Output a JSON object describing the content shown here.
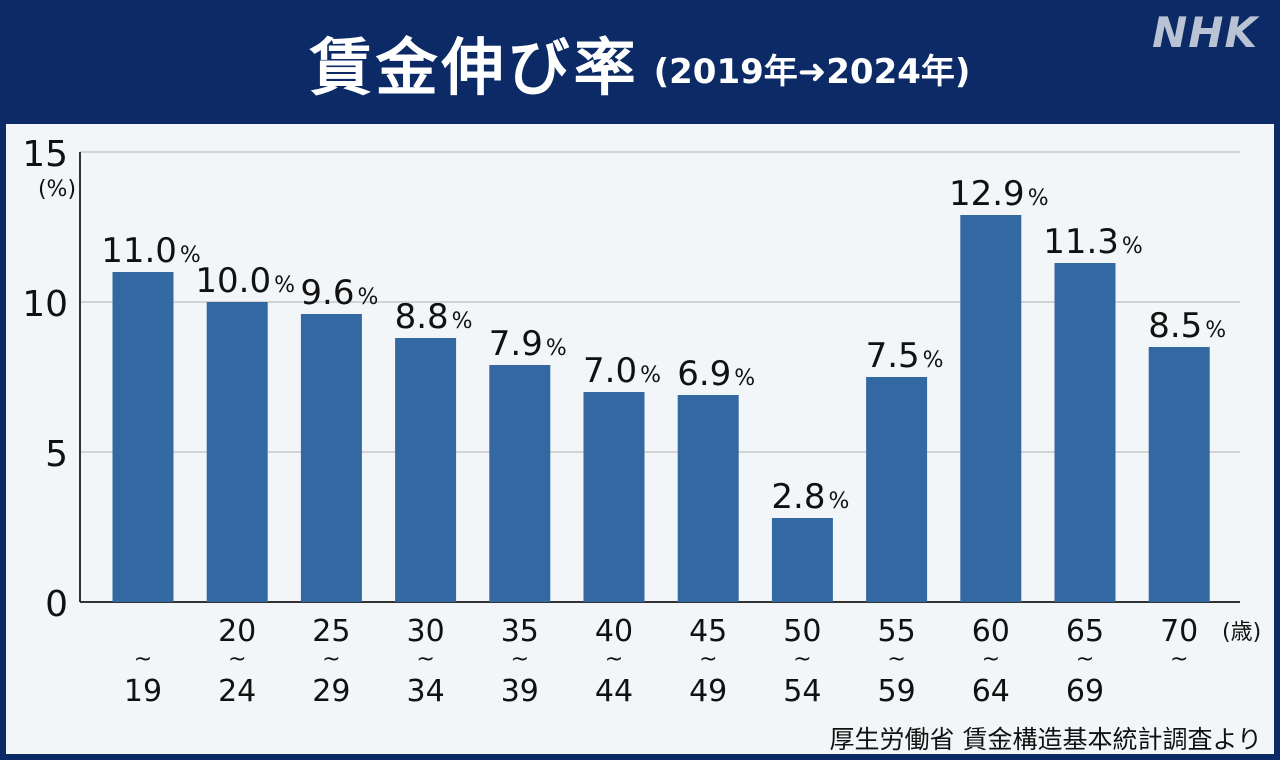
{
  "header": {
    "title": "賃金伸び率",
    "subtitle": "(2019年➜2024年)",
    "logo": "NHK"
  },
  "source": "厚生労働省 賃金構造基本統計調査より",
  "colors": {
    "header_bg": "#0b2a66",
    "panel_bg": "#f3f6f8",
    "bar": "#3468a3",
    "grid": "#c8c8c8",
    "axis": "#333333",
    "text": "#111111"
  },
  "chart_data": {
    "type": "bar",
    "title": "賃金伸び率",
    "ylabel": "(%)",
    "xlabel": "(歳)",
    "ylim": [
      0,
      15
    ],
    "yticks": [
      0,
      5,
      10,
      15
    ],
    "grid": true,
    "categories": [
      {
        "top": "",
        "bottom": "19"
      },
      {
        "top": "20",
        "bottom": "24"
      },
      {
        "top": "25",
        "bottom": "29"
      },
      {
        "top": "30",
        "bottom": "34"
      },
      {
        "top": "35",
        "bottom": "39"
      },
      {
        "top": "40",
        "bottom": "44"
      },
      {
        "top": "45",
        "bottom": "49"
      },
      {
        "top": "50",
        "bottom": "54"
      },
      {
        "top": "55",
        "bottom": "59"
      },
      {
        "top": "60",
        "bottom": "64"
      },
      {
        "top": "65",
        "bottom": "69"
      },
      {
        "top": "70",
        "bottom": ""
      }
    ],
    "tilde": "~",
    "values": [
      11.0,
      10.0,
      9.6,
      8.8,
      7.9,
      7.0,
      6.9,
      2.8,
      7.5,
      12.9,
      11.3,
      8.5
    ],
    "value_labels": [
      "11.0",
      "10.0",
      "9.6",
      "8.8",
      "7.9",
      "7.0",
      "6.9",
      "2.8",
      "7.5",
      "12.9",
      "11.3",
      "8.5"
    ],
    "value_unit": "%"
  }
}
